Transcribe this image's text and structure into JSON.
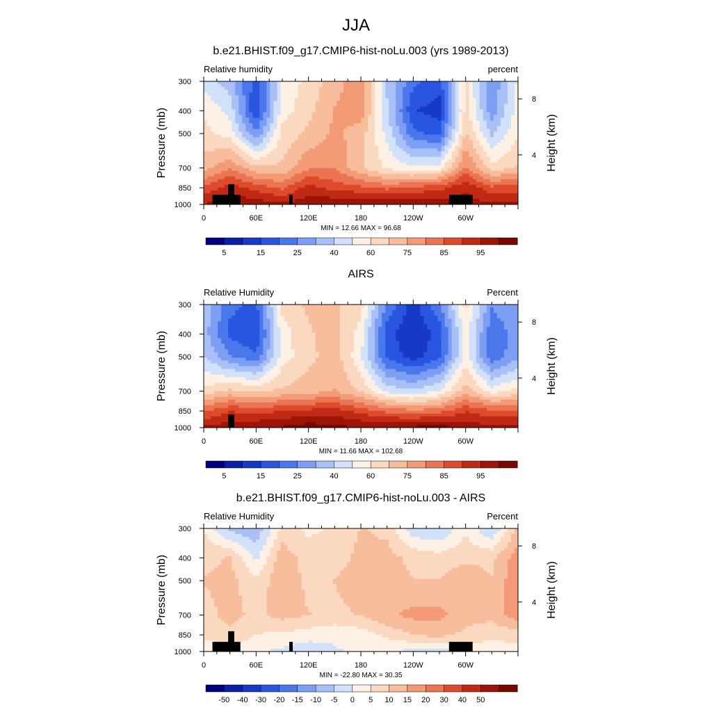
{
  "figure": {
    "title": "JJA",
    "palettes": {
      "absolute": [
        "#00007f",
        "#0b1ea6",
        "#1739c7",
        "#2a55e0",
        "#4a77ec",
        "#7d9ef2",
        "#a8c0f6",
        "#d2e1fa",
        "#fdf0e4",
        "#fbd9c0",
        "#f7bd9c",
        "#f29b76",
        "#eb7452",
        "#dd4a2c",
        "#c02a14",
        "#9c1408",
        "#750800"
      ],
      "difference": [
        "#00007f",
        "#0b1ea6",
        "#1739c7",
        "#2a55e0",
        "#4a77ec",
        "#7d9ef2",
        "#a8c0f6",
        "#d2e1fa",
        "#fdf0e4",
        "#fbd9c0",
        "#f7bd9c",
        "#f29b76",
        "#eb7452",
        "#dd4a2c",
        "#c02a14",
        "#9c1408",
        "#750800"
      ]
    },
    "pressure_ticks": [
      "300",
      "400",
      "500",
      "700",
      "850",
      "1000"
    ],
    "height_ticks": [
      "8",
      "4"
    ],
    "lon_ticks": [
      "0",
      "60E",
      "120E",
      "180",
      "120W",
      "60W"
    ],
    "left_axis_label": "Pressure (mb)",
    "right_axis_label": "Height (km)"
  },
  "panels": [
    {
      "title": "b.e21.BHIST.f09_g17.CMIP6-hist-noLu.003 (yrs 1989-2013)",
      "left_string": "Relative humidity",
      "right_string": "percent",
      "stats": "MIN =  12.66  MAX =  96.68",
      "colorbar_labels": [
        "5",
        "15",
        "25",
        "40",
        "60",
        "75",
        "85",
        "95"
      ],
      "palette": "absolute",
      "topography": true,
      "grid_levels": [
        "300",
        "400",
        "500",
        "700",
        "850",
        "1000"
      ],
      "grid_lons": [
        0,
        30,
        60,
        90,
        120,
        150,
        180,
        210,
        240,
        270,
        300,
        330,
        360
      ]
    },
    {
      "title": "AIRS",
      "left_string": "Relative Humidity",
      "right_string": "Percent",
      "stats": "MIN =  11.66  MAX = 102.68",
      "colorbar_labels": [
        "5",
        "15",
        "25",
        "40",
        "60",
        "75",
        "85",
        "95"
      ],
      "palette": "absolute",
      "topography": false,
      "grid_levels": [
        "300",
        "400",
        "500",
        "700",
        "850",
        "1000"
      ],
      "grid_lons": [
        0,
        30,
        60,
        90,
        120,
        150,
        180,
        210,
        240,
        270,
        300,
        330,
        360
      ]
    },
    {
      "title": "b.e21.BHIST.f09_g17.CMIP6-hist-noLu.003 - AIRS",
      "left_string": "Relative Humidity",
      "right_string": "Percent",
      "stats": "MIN = -22.80  MAX =  30.35",
      "colorbar_labels": [
        "-50",
        "-40",
        "-30",
        "-20",
        "-15",
        "-10",
        "-5",
        "0",
        "5",
        "10",
        "15",
        "20",
        "30",
        "40",
        "50"
      ],
      "palette": "difference",
      "topography": true,
      "grid_levels": [
        "300",
        "400",
        "500",
        "700",
        "850",
        "1000"
      ],
      "grid_lons": [
        0,
        30,
        60,
        90,
        120,
        150,
        180,
        210,
        240,
        270,
        300,
        330,
        360
      ]
    }
  ],
  "chart_data": [
    {
      "type": "heatmap",
      "title": "b.e21.BHIST.f09_g17.CMIP6-hist-noLu.003 (yrs 1989-2013)",
      "xlabel": "",
      "ylabel": "Pressure (mb)",
      "x_ticks": [
        "0",
        "60E",
        "120E",
        "180",
        "120W",
        "60W"
      ],
      "y_ticks": [
        "300",
        "400",
        "500",
        "700",
        "850",
        "1000"
      ],
      "x": [
        0,
        30,
        60,
        90,
        120,
        150,
        180,
        210,
        240,
        270,
        300,
        330,
        360
      ],
      "y": [
        300,
        400,
        500,
        700,
        850,
        1000
      ],
      "z": [
        [
          45,
          38,
          20,
          48,
          55,
          62,
          70,
          40,
          25,
          20,
          55,
          30,
          48
        ],
        [
          52,
          45,
          18,
          50,
          57,
          65,
          68,
          42,
          18,
          15,
          55,
          32,
          50
        ],
        [
          55,
          50,
          30,
          55,
          60,
          66,
          62,
          45,
          25,
          22,
          60,
          40,
          52
        ],
        [
          62,
          70,
          60,
          60,
          70,
          70,
          60,
          52,
          48,
          50,
          72,
          55,
          60
        ],
        [
          78,
          85,
          80,
          75,
          85,
          80,
          78,
          75,
          78,
          80,
          88,
          78,
          80
        ],
        [
          88,
          94,
          92,
          90,
          92,
          94,
          94,
          93,
          94,
          92,
          90,
          90,
          90
        ]
      ],
      "min": 12.66,
      "max": 96.68,
      "colorbar_labels": [
        "5",
        "15",
        "25",
        "40",
        "60",
        "75",
        "85",
        "95"
      ]
    },
    {
      "type": "heatmap",
      "title": "AIRS",
      "xlabel": "",
      "ylabel": "Pressure (mb)",
      "x_ticks": [
        "0",
        "60E",
        "120E",
        "180",
        "120W",
        "60W"
      ],
      "y_ticks": [
        "300",
        "400",
        "500",
        "700",
        "850",
        "1000"
      ],
      "x": [
        0,
        30,
        60,
        90,
        120,
        150,
        180,
        210,
        240,
        270,
        300,
        330,
        360
      ],
      "y": [
        300,
        400,
        500,
        700,
        850,
        1000
      ],
      "z": [
        [
          40,
          25,
          22,
          55,
          60,
          60,
          55,
          28,
          15,
          28,
          55,
          30,
          35
        ],
        [
          38,
          22,
          18,
          50,
          58,
          62,
          50,
          20,
          12,
          20,
          50,
          25,
          32
        ],
        [
          42,
          30,
          25,
          50,
          57,
          62,
          48,
          22,
          15,
          22,
          50,
          25,
          34
        ],
        [
          55,
          60,
          58,
          60,
          62,
          65,
          58,
          45,
          42,
          48,
          62,
          50,
          55
        ],
        [
          75,
          82,
          80,
          82,
          84,
          85,
          80,
          75,
          72,
          74,
          82,
          78,
          78
        ],
        [
          90,
          92,
          94,
          95,
          98,
          96,
          94,
          94,
          96,
          98,
          92,
          90,
          90
        ]
      ],
      "min": 11.66,
      "max": 102.68,
      "colorbar_labels": [
        "5",
        "15",
        "25",
        "40",
        "60",
        "75",
        "85",
        "95"
      ]
    },
    {
      "type": "heatmap",
      "title": "b.e21.BHIST.f09_g17.CMIP6-hist-noLu.003 - AIRS",
      "xlabel": "",
      "ylabel": "Pressure (mb)",
      "x_ticks": [
        "0",
        "60E",
        "120E",
        "180",
        "120W",
        "60W"
      ],
      "y_ticks": [
        "300",
        "400",
        "500",
        "700",
        "850",
        "1000"
      ],
      "x": [
        0,
        30,
        60,
        90,
        120,
        150,
        180,
        210,
        240,
        270,
        300,
        330,
        360
      ],
      "y": [
        300,
        400,
        500,
        700,
        850,
        1000
      ],
      "z": [
        [
          3,
          -12,
          -15,
          5,
          2,
          4,
          10,
          8,
          -8,
          -10,
          2,
          -10,
          12
        ],
        [
          8,
          10,
          -5,
          14,
          6,
          6,
          12,
          12,
          8,
          6,
          8,
          8,
          20
        ],
        [
          10,
          12,
          5,
          15,
          8,
          10,
          14,
          12,
          10,
          10,
          15,
          10,
          22
        ],
        [
          7,
          12,
          8,
          12,
          10,
          8,
          10,
          15,
          18,
          18,
          12,
          12,
          20
        ],
        [
          5,
          8,
          3,
          2,
          0,
          -2,
          0,
          5,
          10,
          12,
          8,
          5,
          6
        ],
        [
          -3,
          2,
          -2,
          -5,
          -8,
          -4,
          -2,
          -3,
          -5,
          -7,
          -2,
          0,
          0
        ]
      ],
      "min": -22.8,
      "max": 30.35,
      "colorbar_labels": [
        "-50",
        "-40",
        "-30",
        "-20",
        "-15",
        "-10",
        "-5",
        "0",
        "5",
        "10",
        "15",
        "20",
        "30",
        "40",
        "50"
      ]
    }
  ]
}
